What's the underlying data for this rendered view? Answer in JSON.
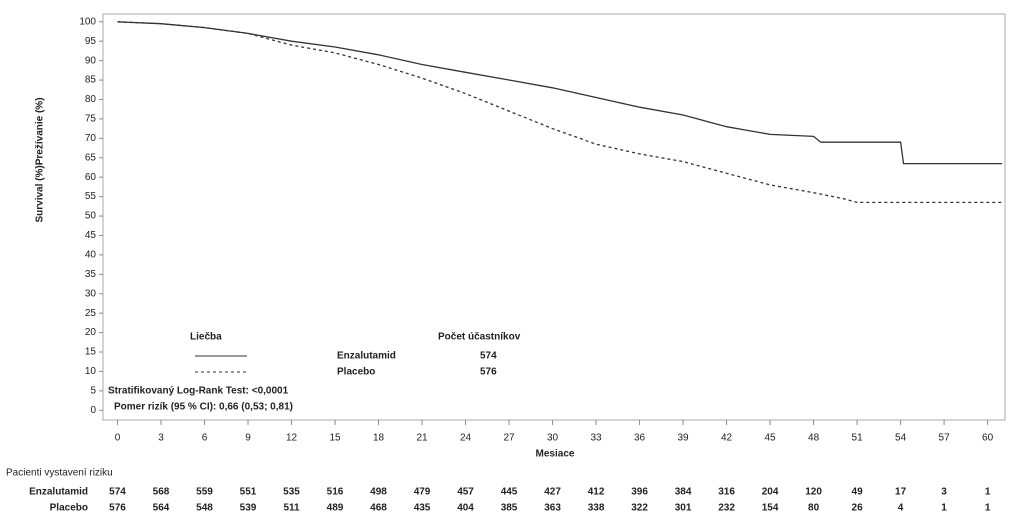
{
  "chart_data": {
    "type": "line",
    "y_label": "Survival (%)Prežívanie (%)",
    "x_label": "Mesiace",
    "xlim": [
      -1,
      61.2
    ],
    "ylim": [
      -2.5,
      102
    ],
    "xticks": [
      0,
      3,
      6,
      9,
      12,
      15,
      18,
      21,
      24,
      27,
      30,
      33,
      36,
      39,
      42,
      45,
      48,
      51,
      54,
      57,
      60
    ],
    "yticks": [
      0,
      5,
      10,
      15,
      20,
      25,
      30,
      35,
      40,
      45,
      50,
      55,
      60,
      65,
      70,
      75,
      80,
      85,
      90,
      95,
      100
    ],
    "legend_title": "Liečba",
    "legend_count_title": "Počet účastníkov",
    "series": [
      {
        "name": "Enzalutamid",
        "n": 574,
        "color": "#333333",
        "dashed": false,
        "x": [
          0,
          3,
          6,
          9,
          12,
          15,
          18,
          21,
          24,
          27,
          30,
          33,
          36,
          39,
          42,
          45,
          48,
          48.5,
          51,
          54,
          54.2,
          57,
          61
        ],
        "values": [
          100,
          99.5,
          98.5,
          97,
          95,
          93.5,
          91.5,
          89,
          87,
          85,
          83,
          80.5,
          78,
          76,
          73,
          71,
          70.5,
          69,
          69,
          69,
          63.5,
          63.5,
          63.5
        ]
      },
      {
        "name": "Placebo",
        "n": 576,
        "color": "#333333",
        "dashed": true,
        "x": [
          0,
          3,
          6,
          9,
          12,
          15,
          18,
          21,
          24,
          27,
          30,
          33,
          36,
          39,
          42,
          45,
          48,
          50,
          51,
          61
        ],
        "values": [
          100,
          99.5,
          98.5,
          97,
          94,
          92,
          89,
          85.5,
          81.5,
          77,
          72.5,
          68.5,
          66,
          64,
          61,
          58,
          56,
          54.5,
          53.5,
          53.5
        ]
      }
    ],
    "annotations": [
      "Stratifikovaný Log-Rank Test: <0,0001",
      "Pomer rizík (95 % CI): 0,66 (0,53; 0,81)"
    ],
    "risk_table": {
      "title": "Pacienti vystavení riziku",
      "rows": [
        {
          "name": "Enzalutamid",
          "values": [
            574,
            568,
            559,
            551,
            535,
            516,
            498,
            479,
            457,
            445,
            427,
            412,
            396,
            384,
            316,
            204,
            120,
            49,
            17,
            3,
            1
          ]
        },
        {
          "name": "Placebo",
          "values": [
            576,
            564,
            548,
            539,
            511,
            489,
            468,
            435,
            404,
            385,
            363,
            338,
            322,
            301,
            232,
            154,
            80,
            26,
            4,
            1,
            1
          ]
        }
      ]
    }
  }
}
